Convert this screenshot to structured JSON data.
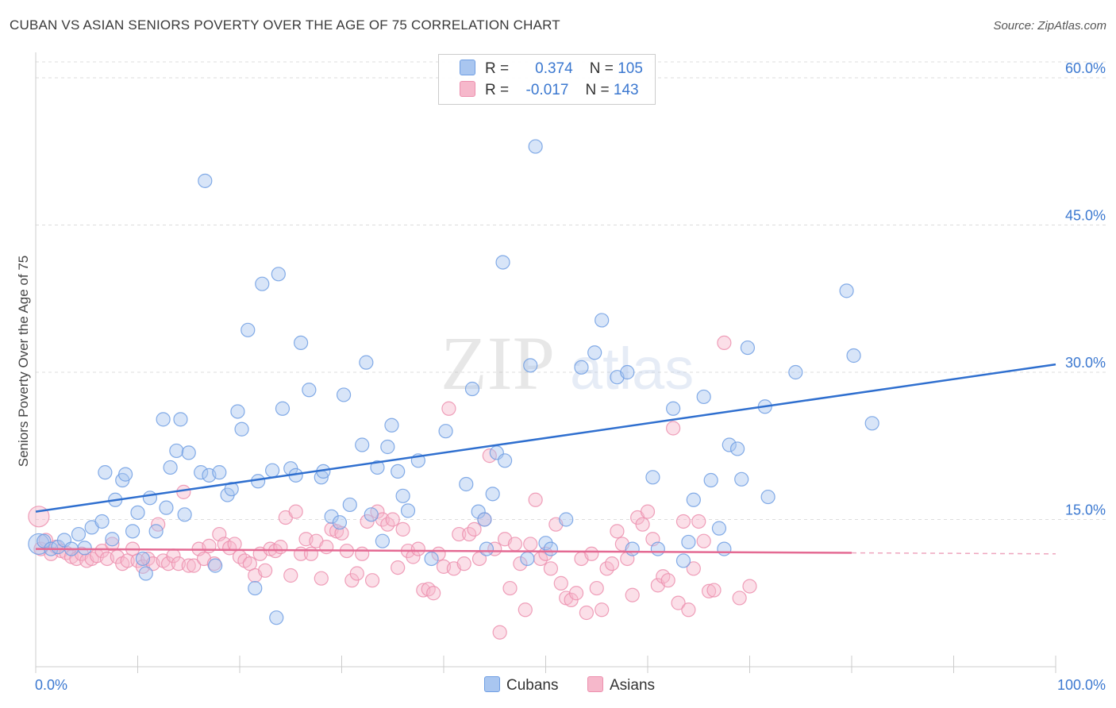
{
  "header": {
    "title": "CUBAN VS ASIAN SENIORS POVERTY OVER THE AGE OF 75 CORRELATION CHART",
    "source": "Source: ZipAtlas.com"
  },
  "legend": {
    "rows": [
      {
        "r_label": "R =",
        "r_value": "0.374",
        "n_label": "N =",
        "n_value": "105"
      },
      {
        "r_label": "R =",
        "r_value": "-0.017",
        "n_label": "N =",
        "n_value": "143"
      }
    ],
    "bottom": [
      "Cubans",
      "Asians"
    ]
  },
  "watermark": {
    "part1": "ZIP",
    "part2": "atlas"
  },
  "colors": {
    "cubans_fill": "#a9c6f0",
    "cubans_stroke": "#6f9ee3",
    "cubans_line": "#2f6fcf",
    "asians_fill": "#f6b8cb",
    "asians_stroke": "#ec8fae",
    "asians_line": "#e46a93",
    "axis_text": "#3b78d0",
    "grid": "#dddddd"
  },
  "chart_data": {
    "type": "scatter",
    "title": "CUBAN VS ASIAN SENIORS POVERTY OVER THE AGE OF 75 CORRELATION CHART",
    "xlabel": "",
    "ylabel": "Seniors Poverty Over the Age of 75",
    "xlim": [
      0,
      100
    ],
    "ylim": [
      0,
      60
    ],
    "x_tick_labels": [
      "0.0%",
      "100.0%"
    ],
    "y_ticks": [
      15,
      30,
      45,
      60
    ],
    "y_tick_labels": [
      "15.0%",
      "30.0%",
      "45.0%",
      "60.0%"
    ],
    "grid": true,
    "series": [
      {
        "name": "Cubans",
        "r": 0.374,
        "n": 105,
        "trend": {
          "x": [
            0,
            100
          ],
          "y": [
            15.8,
            30.8
          ]
        },
        "points": [
          [
            0.3,
            12.5
          ],
          [
            0.8,
            12.8
          ],
          [
            1.5,
            12.0
          ],
          [
            2.2,
            12.2
          ],
          [
            2.8,
            12.9
          ],
          [
            3.5,
            12.0
          ],
          [
            4.2,
            13.5
          ],
          [
            4.8,
            12.1
          ],
          [
            5.5,
            14.2
          ],
          [
            6.5,
            14.8
          ],
          [
            6.8,
            19.8
          ],
          [
            7.5,
            13.0
          ],
          [
            7.8,
            17.0
          ],
          [
            8.5,
            19.0
          ],
          [
            8.8,
            19.6
          ],
          [
            9.5,
            13.8
          ],
          [
            10.0,
            15.7
          ],
          [
            10.5,
            11.0
          ],
          [
            10.8,
            9.5
          ],
          [
            11.2,
            17.2
          ],
          [
            11.8,
            13.8
          ],
          [
            12.5,
            25.2
          ],
          [
            12.8,
            16.2
          ],
          [
            13.2,
            20.3
          ],
          [
            13.8,
            22.0
          ],
          [
            14.2,
            25.2
          ],
          [
            14.6,
            15.5
          ],
          [
            15.0,
            21.8
          ],
          [
            16.2,
            19.8
          ],
          [
            16.6,
            49.5
          ],
          [
            17.0,
            19.5
          ],
          [
            17.6,
            10.3
          ],
          [
            18.0,
            19.8
          ],
          [
            18.8,
            17.5
          ],
          [
            19.2,
            18.1
          ],
          [
            19.8,
            26.0
          ],
          [
            20.2,
            24.2
          ],
          [
            20.8,
            34.3
          ],
          [
            21.5,
            8.0
          ],
          [
            21.8,
            18.9
          ],
          [
            22.2,
            39.0
          ],
          [
            23.6,
            5.0
          ],
          [
            23.2,
            20.0
          ],
          [
            23.8,
            40.0
          ],
          [
            24.2,
            26.3
          ],
          [
            25.0,
            20.2
          ],
          [
            25.5,
            19.5
          ],
          [
            26.0,
            33.0
          ],
          [
            26.8,
            28.2
          ],
          [
            28.0,
            19.3
          ],
          [
            28.2,
            19.9
          ],
          [
            29.0,
            15.3
          ],
          [
            29.8,
            14.7
          ],
          [
            30.2,
            27.7
          ],
          [
            30.8,
            16.5
          ],
          [
            32.0,
            22.6
          ],
          [
            32.4,
            31.0
          ],
          [
            32.9,
            15.5
          ],
          [
            33.5,
            20.3
          ],
          [
            34.0,
            12.8
          ],
          [
            34.5,
            22.4
          ],
          [
            34.9,
            24.6
          ],
          [
            35.5,
            19.9
          ],
          [
            36.0,
            17.4
          ],
          [
            36.5,
            15.9
          ],
          [
            37.5,
            21.0
          ],
          [
            38.8,
            11.0
          ],
          [
            40.2,
            24.0
          ],
          [
            42.2,
            18.6
          ],
          [
            42.8,
            28.3
          ],
          [
            43.4,
            15.8
          ],
          [
            44.0,
            15.0
          ],
          [
            44.2,
            12.0
          ],
          [
            44.8,
            17.6
          ],
          [
            45.2,
            21.8
          ],
          [
            45.8,
            41.2
          ],
          [
            46.0,
            21.0
          ],
          [
            48.2,
            11.0
          ],
          [
            48.5,
            30.7
          ],
          [
            49.0,
            53.0
          ],
          [
            50.0,
            12.6
          ],
          [
            50.5,
            12.0
          ],
          [
            52.0,
            15.0
          ],
          [
            53.5,
            30.5
          ],
          [
            54.8,
            32.0
          ],
          [
            55.5,
            35.3
          ],
          [
            57.0,
            29.5
          ],
          [
            58.0,
            30.0
          ],
          [
            58.5,
            12.0
          ],
          [
            60.5,
            19.3
          ],
          [
            61.0,
            12.0
          ],
          [
            62.5,
            26.3
          ],
          [
            63.5,
            10.8
          ],
          [
            64.5,
            17.0
          ],
          [
            64.0,
            12.7
          ],
          [
            65.5,
            27.5
          ],
          [
            66.2,
            19.0
          ],
          [
            67.0,
            14.1
          ],
          [
            67.5,
            12.0
          ],
          [
            68.0,
            22.6
          ],
          [
            68.8,
            22.2
          ],
          [
            69.2,
            19.1
          ],
          [
            69.8,
            32.5
          ],
          [
            71.5,
            26.5
          ],
          [
            71.8,
            17.3
          ],
          [
            74.5,
            30.0
          ],
          [
            79.5,
            38.3
          ],
          [
            80.2,
            31.7
          ],
          [
            82.0,
            24.8
          ]
        ]
      },
      {
        "name": "Asians",
        "r": -0.017,
        "n": 143,
        "trend": {
          "x": [
            0,
            80,
            100
          ],
          "y": [
            12.0,
            11.6,
            11.5
          ],
          "solid_until": 80
        },
        "points": [
          [
            0.3,
            15.3
          ],
          [
            0.5,
            12.0
          ],
          [
            1.0,
            12.9
          ],
          [
            1.5,
            11.5
          ],
          [
            2.0,
            12.2
          ],
          [
            2.5,
            11.8
          ],
          [
            3.0,
            11.6
          ],
          [
            3.5,
            11.2
          ],
          [
            4.0,
            11.0
          ],
          [
            4.5,
            11.5
          ],
          [
            5.0,
            10.8
          ],
          [
            5.5,
            11.0
          ],
          [
            6.0,
            11.3
          ],
          [
            6.5,
            11.8
          ],
          [
            7.0,
            11.0
          ],
          [
            7.5,
            12.5
          ],
          [
            8.0,
            11.2
          ],
          [
            8.5,
            10.5
          ],
          [
            9.0,
            10.8
          ],
          [
            9.5,
            12.0
          ],
          [
            10.0,
            10.8
          ],
          [
            10.5,
            10.2
          ],
          [
            11.0,
            11.0
          ],
          [
            11.5,
            10.5
          ],
          [
            12.0,
            14.5
          ],
          [
            12.5,
            10.8
          ],
          [
            13.0,
            10.5
          ],
          [
            13.5,
            11.3
          ],
          [
            14.0,
            10.5
          ],
          [
            14.5,
            17.8
          ],
          [
            15.0,
            10.3
          ],
          [
            15.5,
            10.3
          ],
          [
            16.0,
            12.0
          ],
          [
            16.5,
            11.0
          ],
          [
            17.0,
            12.3
          ],
          [
            17.5,
            10.5
          ],
          [
            18.0,
            13.5
          ],
          [
            18.5,
            12.5
          ],
          [
            19.0,
            12.1
          ],
          [
            19.5,
            12.5
          ],
          [
            20.0,
            11.2
          ],
          [
            20.5,
            10.8
          ],
          [
            21.0,
            10.5
          ],
          [
            21.5,
            9.3
          ],
          [
            22.0,
            11.5
          ],
          [
            22.5,
            9.8
          ],
          [
            23.0,
            12.0
          ],
          [
            23.5,
            11.8
          ],
          [
            24.0,
            12.2
          ],
          [
            24.5,
            15.2
          ],
          [
            25.0,
            9.3
          ],
          [
            25.5,
            15.8
          ],
          [
            26.0,
            11.5
          ],
          [
            26.5,
            13.0
          ],
          [
            27.0,
            11.5
          ],
          [
            27.5,
            12.8
          ],
          [
            28.0,
            9.0
          ],
          [
            28.5,
            12.2
          ],
          [
            29.0,
            14.0
          ],
          [
            29.5,
            13.8
          ],
          [
            30.0,
            13.6
          ],
          [
            30.5,
            11.8
          ],
          [
            31.0,
            8.8
          ],
          [
            31.5,
            9.5
          ],
          [
            32.0,
            11.5
          ],
          [
            32.5,
            14.8
          ],
          [
            33.0,
            8.8
          ],
          [
            33.5,
            15.8
          ],
          [
            34.0,
            15.0
          ],
          [
            34.5,
            14.5
          ],
          [
            35.0,
            15.0
          ],
          [
            35.5,
            10.1
          ],
          [
            36.0,
            14.0
          ],
          [
            36.5,
            11.8
          ],
          [
            37.0,
            11.2
          ],
          [
            37.5,
            12.0
          ],
          [
            38.0,
            7.8
          ],
          [
            38.5,
            7.9
          ],
          [
            39.0,
            7.5
          ],
          [
            39.5,
            11.5
          ],
          [
            40.0,
            10.2
          ],
          [
            40.5,
            26.3
          ],
          [
            41.0,
            10.0
          ],
          [
            41.5,
            13.5
          ],
          [
            42.0,
            10.5
          ],
          [
            42.5,
            13.5
          ],
          [
            43.0,
            14.0
          ],
          [
            43.5,
            11.0
          ],
          [
            44.0,
            15.0
          ],
          [
            44.5,
            21.5
          ],
          [
            45.0,
            12.0
          ],
          [
            45.5,
            3.5
          ],
          [
            46.0,
            13.0
          ],
          [
            46.5,
            8.0
          ],
          [
            47.0,
            12.5
          ],
          [
            47.5,
            10.5
          ],
          [
            48.0,
            5.8
          ],
          [
            48.5,
            12.5
          ],
          [
            49.0,
            17.0
          ],
          [
            49.5,
            11.0
          ],
          [
            50.0,
            11.5
          ],
          [
            50.5,
            10.0
          ],
          [
            51.0,
            14.5
          ],
          [
            51.5,
            8.5
          ],
          [
            52.0,
            7.0
          ],
          [
            52.5,
            6.8
          ],
          [
            53.0,
            7.5
          ],
          [
            53.5,
            11.0
          ],
          [
            54.0,
            5.5
          ],
          [
            54.5,
            11.5
          ],
          [
            55.0,
            8.0
          ],
          [
            55.5,
            5.8
          ],
          [
            56.0,
            10.0
          ],
          [
            56.5,
            10.5
          ],
          [
            57.0,
            13.8
          ],
          [
            57.5,
            12.5
          ],
          [
            58.0,
            11.0
          ],
          [
            58.5,
            7.3
          ],
          [
            59.0,
            15.2
          ],
          [
            59.5,
            14.5
          ],
          [
            60.0,
            15.8
          ],
          [
            60.5,
            13.0
          ],
          [
            61.0,
            8.3
          ],
          [
            61.5,
            9.2
          ],
          [
            62.0,
            8.8
          ],
          [
            62.5,
            24.3
          ],
          [
            63.0,
            6.5
          ],
          [
            63.5,
            14.8
          ],
          [
            64.0,
            5.8
          ],
          [
            64.5,
            10.0
          ],
          [
            65.0,
            14.8
          ],
          [
            65.5,
            12.8
          ],
          [
            66.0,
            7.7
          ],
          [
            66.5,
            7.8
          ],
          [
            67.5,
            33.0
          ],
          [
            69.0,
            7.0
          ],
          [
            70.0,
            8.2
          ]
        ]
      }
    ]
  }
}
